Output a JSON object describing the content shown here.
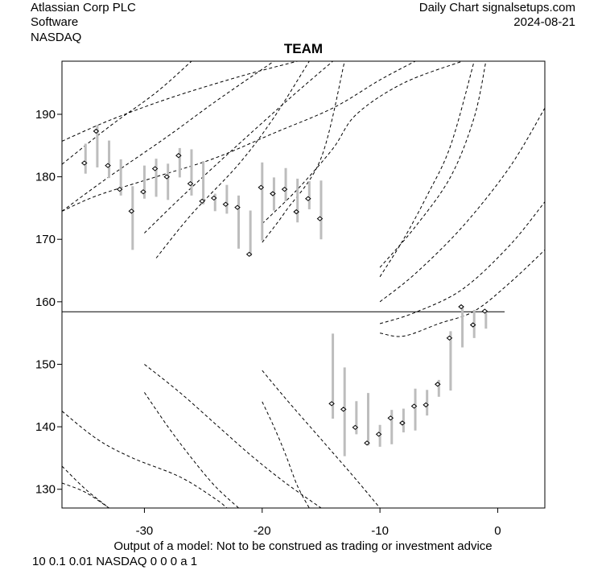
{
  "header": {
    "company": "Atlassian Corp PLC",
    "sector": "Software",
    "exchange": "NASDAQ",
    "source": "Daily Chart signalsetups.com",
    "date": "2024-08-21"
  },
  "footer": {
    "disclaimer": "Output of a model: Not to be construed as trading or investment advice",
    "params": "10 0.1 0.01 NASDAQ 0 0 0 a 1"
  },
  "chart_data": {
    "type": "candlestick-range",
    "title": "TEAM",
    "xlim": [
      -37,
      4
    ],
    "ylim": [
      127,
      198.5
    ],
    "x_ticks": [
      -30,
      -20,
      -10,
      0
    ],
    "x_tick_labels": [
      "-30",
      "-20",
      "-10",
      "0"
    ],
    "y_ticks": [
      130,
      140,
      150,
      160,
      170,
      180,
      190
    ],
    "y_tick_labels": [
      "130",
      "140",
      "150",
      "160",
      "170",
      "180",
      "190"
    ],
    "reference_line": {
      "y": 158.4,
      "x_start": -37,
      "x_end": 4
    },
    "colors": {
      "bar": "#bdbdbd",
      "point": "#000000",
      "curve": "#000000",
      "line": "#000000"
    },
    "bars": [
      {
        "x": -35,
        "low": 180.5,
        "high": 185.3,
        "close": 182.2
      },
      {
        "x": -34,
        "low": 181.5,
        "high": 188.3,
        "close": 187.3
      },
      {
        "x": -33,
        "low": 179.8,
        "high": 185.8,
        "close": 181.8
      },
      {
        "x": -32,
        "low": 177.0,
        "high": 182.8,
        "close": 178.0
      },
      {
        "x": -31,
        "low": 168.3,
        "high": 178.5,
        "close": 174.5
      },
      {
        "x": -30,
        "low": 176.5,
        "high": 181.8,
        "close": 177.6
      },
      {
        "x": -29,
        "low": 176.8,
        "high": 182.9,
        "close": 181.3
      },
      {
        "x": -28,
        "low": 176.3,
        "high": 182.1,
        "close": 180.0
      },
      {
        "x": -27,
        "low": 179.9,
        "high": 184.6,
        "close": 183.4
      },
      {
        "x": -26,
        "low": 177.0,
        "high": 184.4,
        "close": 178.9
      },
      {
        "x": -25,
        "low": 175.6,
        "high": 182.5,
        "close": 176.1
      },
      {
        "x": -24,
        "low": 174.5,
        "high": 177.3,
        "close": 176.6
      },
      {
        "x": -23,
        "low": 174.1,
        "high": 178.7,
        "close": 175.6
      },
      {
        "x": -22,
        "low": 168.5,
        "high": 177.0,
        "close": 175.1
      },
      {
        "x": -21,
        "low": 167.3,
        "high": 174.6,
        "close": 167.6
      },
      {
        "x": -20,
        "low": 169.8,
        "high": 182.3,
        "close": 178.3
      },
      {
        "x": -19,
        "low": 174.6,
        "high": 179.9,
        "close": 177.3
      },
      {
        "x": -18,
        "low": 176.1,
        "high": 181.4,
        "close": 178.0
      },
      {
        "x": -17,
        "low": 172.7,
        "high": 179.7,
        "close": 174.4
      },
      {
        "x": -16,
        "low": 174.8,
        "high": 179.3,
        "close": 176.5
      },
      {
        "x": -15,
        "low": 170.0,
        "high": 179.4,
        "close": 173.3
      },
      {
        "x": -14,
        "low": 141.3,
        "high": 154.9,
        "close": 143.7
      },
      {
        "x": -13,
        "low": 135.3,
        "high": 149.5,
        "close": 142.8
      },
      {
        "x": -12,
        "low": 138.8,
        "high": 144.1,
        "close": 139.9
      },
      {
        "x": -11,
        "low": 137.0,
        "high": 145.4,
        "close": 137.4
      },
      {
        "x": -10,
        "low": 136.8,
        "high": 140.3,
        "close": 138.8
      },
      {
        "x": -9,
        "low": 137.2,
        "high": 142.7,
        "close": 141.4
      },
      {
        "x": -8,
        "low": 139.1,
        "high": 142.9,
        "close": 140.6
      },
      {
        "x": -7,
        "low": 139.4,
        "high": 146.1,
        "close": 143.3
      },
      {
        "x": -6,
        "low": 141.8,
        "high": 145.9,
        "close": 143.5
      },
      {
        "x": -5,
        "low": 144.8,
        "high": 147.5,
        "close": 146.8
      },
      {
        "x": -4,
        "low": 145.8,
        "high": 155.3,
        "close": 154.2
      },
      {
        "x": -3,
        "low": 152.7,
        "high": 159.2,
        "close": 159.2
      },
      {
        "x": -2,
        "low": 154.2,
        "high": 158.7,
        "close": 156.3
      },
      {
        "x": -1,
        "low": 155.7,
        "high": 158.6,
        "close": 158.5
      }
    ],
    "curves": [
      {
        "points": [
          [
            -37,
            182.0
          ],
          [
            -33,
            188.0
          ],
          [
            -29,
            193.5
          ],
          [
            -26,
            198.5
          ]
        ]
      },
      {
        "points": [
          [
            -37,
            185.7
          ],
          [
            -33,
            189.0
          ],
          [
            -28,
            192.5
          ],
          [
            -22,
            196.0
          ],
          [
            -17,
            198.5
          ]
        ]
      },
      {
        "points": [
          [
            -37,
            174.5
          ],
          [
            -33,
            180.0
          ],
          [
            -28,
            186.5
          ],
          [
            -24,
            192.0
          ],
          [
            -19,
            198.5
          ]
        ]
      },
      {
        "points": [
          [
            -37,
            174.5
          ],
          [
            -34,
            177.0
          ],
          [
            -29,
            180.0
          ],
          [
            -24,
            183.0
          ],
          [
            -19,
            187.0
          ],
          [
            -14,
            191.0
          ],
          [
            -10,
            195.5
          ],
          [
            -7,
            198.5
          ]
        ]
      },
      {
        "points": [
          [
            -29,
            167.0
          ],
          [
            -26,
            174.0
          ],
          [
            -22,
            182.0
          ],
          [
            -19,
            189.5
          ],
          [
            -16,
            198.5
          ]
        ]
      },
      {
        "points": [
          [
            -30,
            171.0
          ],
          [
            -27,
            176.5
          ],
          [
            -23,
            183.5
          ],
          [
            -18,
            192.0
          ],
          [
            -14,
            198.5
          ]
        ]
      },
      {
        "points": [
          [
            -20,
            169.5
          ],
          [
            -18,
            174.5
          ],
          [
            -15,
            183.0
          ],
          [
            -13,
            198.5
          ]
        ]
      },
      {
        "points": [
          [
            -20,
            172.5
          ],
          [
            -17,
            178.0
          ],
          [
            -14,
            184.5
          ],
          [
            -12,
            190.0
          ],
          [
            -8,
            195.0
          ],
          [
            -3,
            198.5
          ]
        ]
      },
      {
        "points": [
          [
            -10,
            164.0
          ],
          [
            -8,
            170.0
          ],
          [
            -6,
            177.0
          ],
          [
            -4,
            185.0
          ],
          [
            -2,
            198.5
          ]
        ]
      },
      {
        "points": [
          [
            -10,
            165.5
          ],
          [
            -7,
            172.0
          ],
          [
            -4,
            180.0
          ],
          [
            -2,
            189.5
          ],
          [
            -1,
            198.5
          ]
        ]
      },
      {
        "points": [
          [
            -10,
            160.0
          ],
          [
            -7,
            164.5
          ],
          [
            -3,
            172.0
          ],
          [
            1,
            181.5
          ],
          [
            4,
            191.0
          ]
        ]
      },
      {
        "points": [
          [
            -10,
            156.5
          ],
          [
            -7,
            158.3
          ],
          [
            -3,
            162.0
          ],
          [
            1,
            169.0
          ],
          [
            4,
            176.0
          ]
        ]
      },
      {
        "points": [
          [
            -10,
            155.0
          ],
          [
            -8,
            154.5
          ],
          [
            -5,
            156.5
          ],
          [
            -2,
            158.5
          ],
          [
            1,
            163.0
          ],
          [
            4,
            168.3
          ]
        ]
      },
      {
        "points": [
          [
            -37,
            142.5
          ],
          [
            -34,
            138.0
          ],
          [
            -31,
            135.0
          ],
          [
            -27,
            132.0
          ],
          [
            -24,
            128.5
          ],
          [
            -23,
            127.0
          ]
        ]
      },
      {
        "points": [
          [
            -37,
            133.7
          ],
          [
            -35,
            130.0
          ],
          [
            -33,
            127.0
          ]
        ]
      },
      {
        "points": [
          [
            -37,
            131.0
          ],
          [
            -35,
            129.5
          ],
          [
            -33,
            127.0
          ]
        ]
      },
      {
        "points": [
          [
            -30,
            150.0
          ],
          [
            -27,
            145.5
          ],
          [
            -24,
            140.5
          ],
          [
            -21,
            135.5
          ],
          [
            -18,
            131.0
          ],
          [
            -15,
            127.0
          ]
        ]
      },
      {
        "points": [
          [
            -30,
            145.5
          ],
          [
            -28,
            140.0
          ],
          [
            -26,
            135.0
          ],
          [
            -24,
            130.5
          ],
          [
            -22,
            127.0
          ]
        ]
      },
      {
        "points": [
          [
            -20,
            149.0
          ],
          [
            -18,
            144.5
          ],
          [
            -15,
            138.0
          ],
          [
            -12,
            131.5
          ],
          [
            -10,
            127.0
          ]
        ]
      },
      {
        "points": [
          [
            -20,
            144.0
          ],
          [
            -19,
            140.0
          ],
          [
            -18,
            135.5
          ],
          [
            -17,
            130.5
          ],
          [
            -16,
            127.0
          ]
        ]
      }
    ]
  }
}
